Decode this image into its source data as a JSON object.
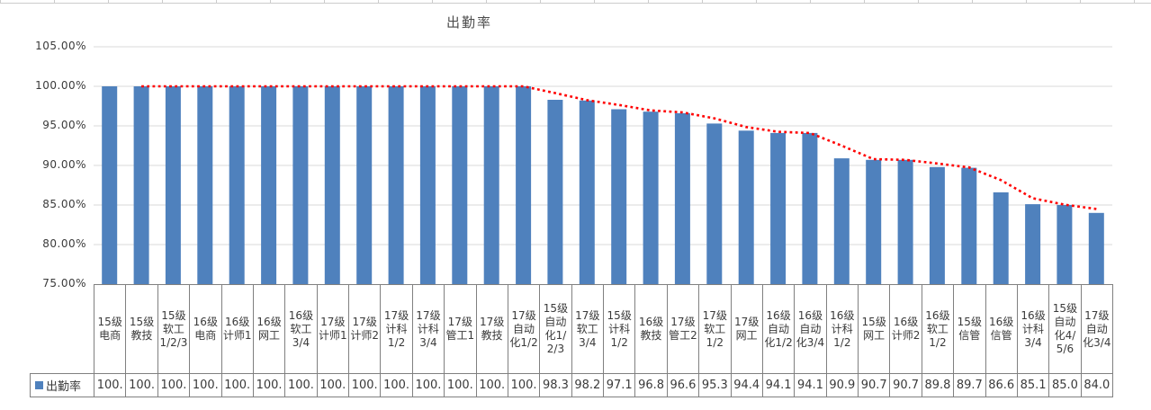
{
  "chart_data": {
    "type": "bar",
    "title": "出勤率",
    "series_name": "出勤率",
    "categories": [
      "15级电商",
      "15级教技",
      "15级软工1/2/3",
      "16级电商",
      "16级计师1",
      "16级网工",
      "16级软工3/4",
      "17级计师1",
      "17级计师2",
      "17级计科1/2",
      "17级计科3/4",
      "17级管工1",
      "17级教技",
      "17级自动化1/2",
      "15级自动化1/2/3",
      "17级软工3/4",
      "15级计科1/2",
      "16级教技",
      "17级管工2",
      "17级软工1/2",
      "17级网工",
      "16级自动化1/2",
      "16级自动化3/4",
      "16级计科1/2",
      "15级网工",
      "16级计师2",
      "16级软工1/2",
      "15级信管",
      "16级信管",
      "16级计科3/4",
      "15级自动化4/5/6",
      "17级自动化3/4"
    ],
    "values": [
      100,
      100,
      100,
      100,
      100,
      100,
      100,
      100,
      100,
      100,
      100,
      100,
      100,
      100,
      98.3,
      98.2,
      97.1,
      96.8,
      96.6,
      95.3,
      94.4,
      94.1,
      94.1,
      90.9,
      90.7,
      90.7,
      89.8,
      89.7,
      86.6,
      85.1,
      85.0,
      84.0
    ],
    "display_values": [
      "100.",
      "100.",
      "100.",
      "100.",
      "100.",
      "100.",
      "100.",
      "100.",
      "100.",
      "100.",
      "100.",
      "100.",
      "100.",
      "100.",
      "98.3",
      "98.2",
      "97.1",
      "96.8",
      "96.6",
      "95.3",
      "94.4",
      "94.1",
      "94.1",
      "90.9",
      "90.7",
      "90.7",
      "89.8",
      "89.7",
      "86.6",
      "85.1",
      "85.0",
      "84.0"
    ],
    "y_ticks": [
      {
        "label": "105.00%",
        "value": 105
      },
      {
        "label": "100.00%",
        "value": 100
      },
      {
        "label": "95.00%",
        "value": 95
      },
      {
        "label": "90.00%",
        "value": 90
      },
      {
        "label": "85.00%",
        "value": 85
      },
      {
        "label": "80.00%",
        "value": 80
      },
      {
        "label": "75.00%",
        "value": 75
      }
    ],
    "ylim": [
      75,
      105
    ],
    "grid": true,
    "legend_position": "bottom-left",
    "trendline": {
      "kind": "moving-average",
      "period": 2,
      "style": "dotted"
    },
    "colors": {
      "bar": "#4F81BD",
      "trendline": "#FF0000",
      "gridline": "#D9D9D9",
      "table_border": "#808080",
      "text": "#3a3a3a"
    }
  }
}
